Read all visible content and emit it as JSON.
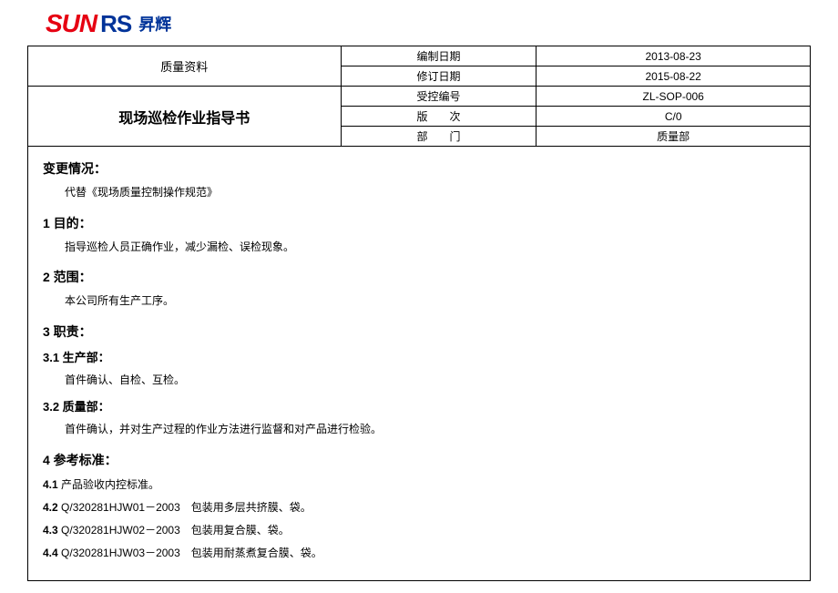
{
  "logo": {
    "part1": "SUN",
    "part2": "RS",
    "chinese": "昇辉"
  },
  "header": {
    "leftTop": "质量资料",
    "leftBottom": "现场巡检作业指导书",
    "rows": [
      {
        "label": "编制日期",
        "value": "2013-08-23"
      },
      {
        "label": "修订日期",
        "value": "2015-08-22"
      },
      {
        "label": "受控编号",
        "value": "ZL-SOP-006"
      },
      {
        "label": "版　　次",
        "value": "C/0"
      },
      {
        "label": "部　　门",
        "value": "质量部"
      }
    ]
  },
  "sections": {
    "change": {
      "title": "变更情况：",
      "text": "代替《现场质量控制操作规范》"
    },
    "s1": {
      "title": "1 目的：",
      "text": "指导巡检人员正确作业，减少漏检、误检现象。"
    },
    "s2": {
      "title": "2 范围：",
      "text": "本公司所有生产工序。"
    },
    "s3": {
      "title": "3 职责：",
      "sub1": {
        "title": "3.1 生产部：",
        "text": "首件确认、自检、互检。"
      },
      "sub2": {
        "title": "3.2 质量部：",
        "text": "首件确认，并对生产过程的作业方法进行监督和对产品进行检验。"
      }
    },
    "s4": {
      "title": "4 参考标准：",
      "items": [
        {
          "num": "4.1",
          "text": " 产品验收内控标准。"
        },
        {
          "num": "4.2",
          "text": " Q/320281HJW01－2003　包装用多层共挤膜、袋。"
        },
        {
          "num": "4.3",
          "text": " Q/320281HJW02－2003　包装用复合膜、袋。"
        },
        {
          "num": "4.4",
          "text": " Q/320281HJW03－2003　包装用耐蒸煮复合膜、袋。"
        }
      ]
    }
  }
}
